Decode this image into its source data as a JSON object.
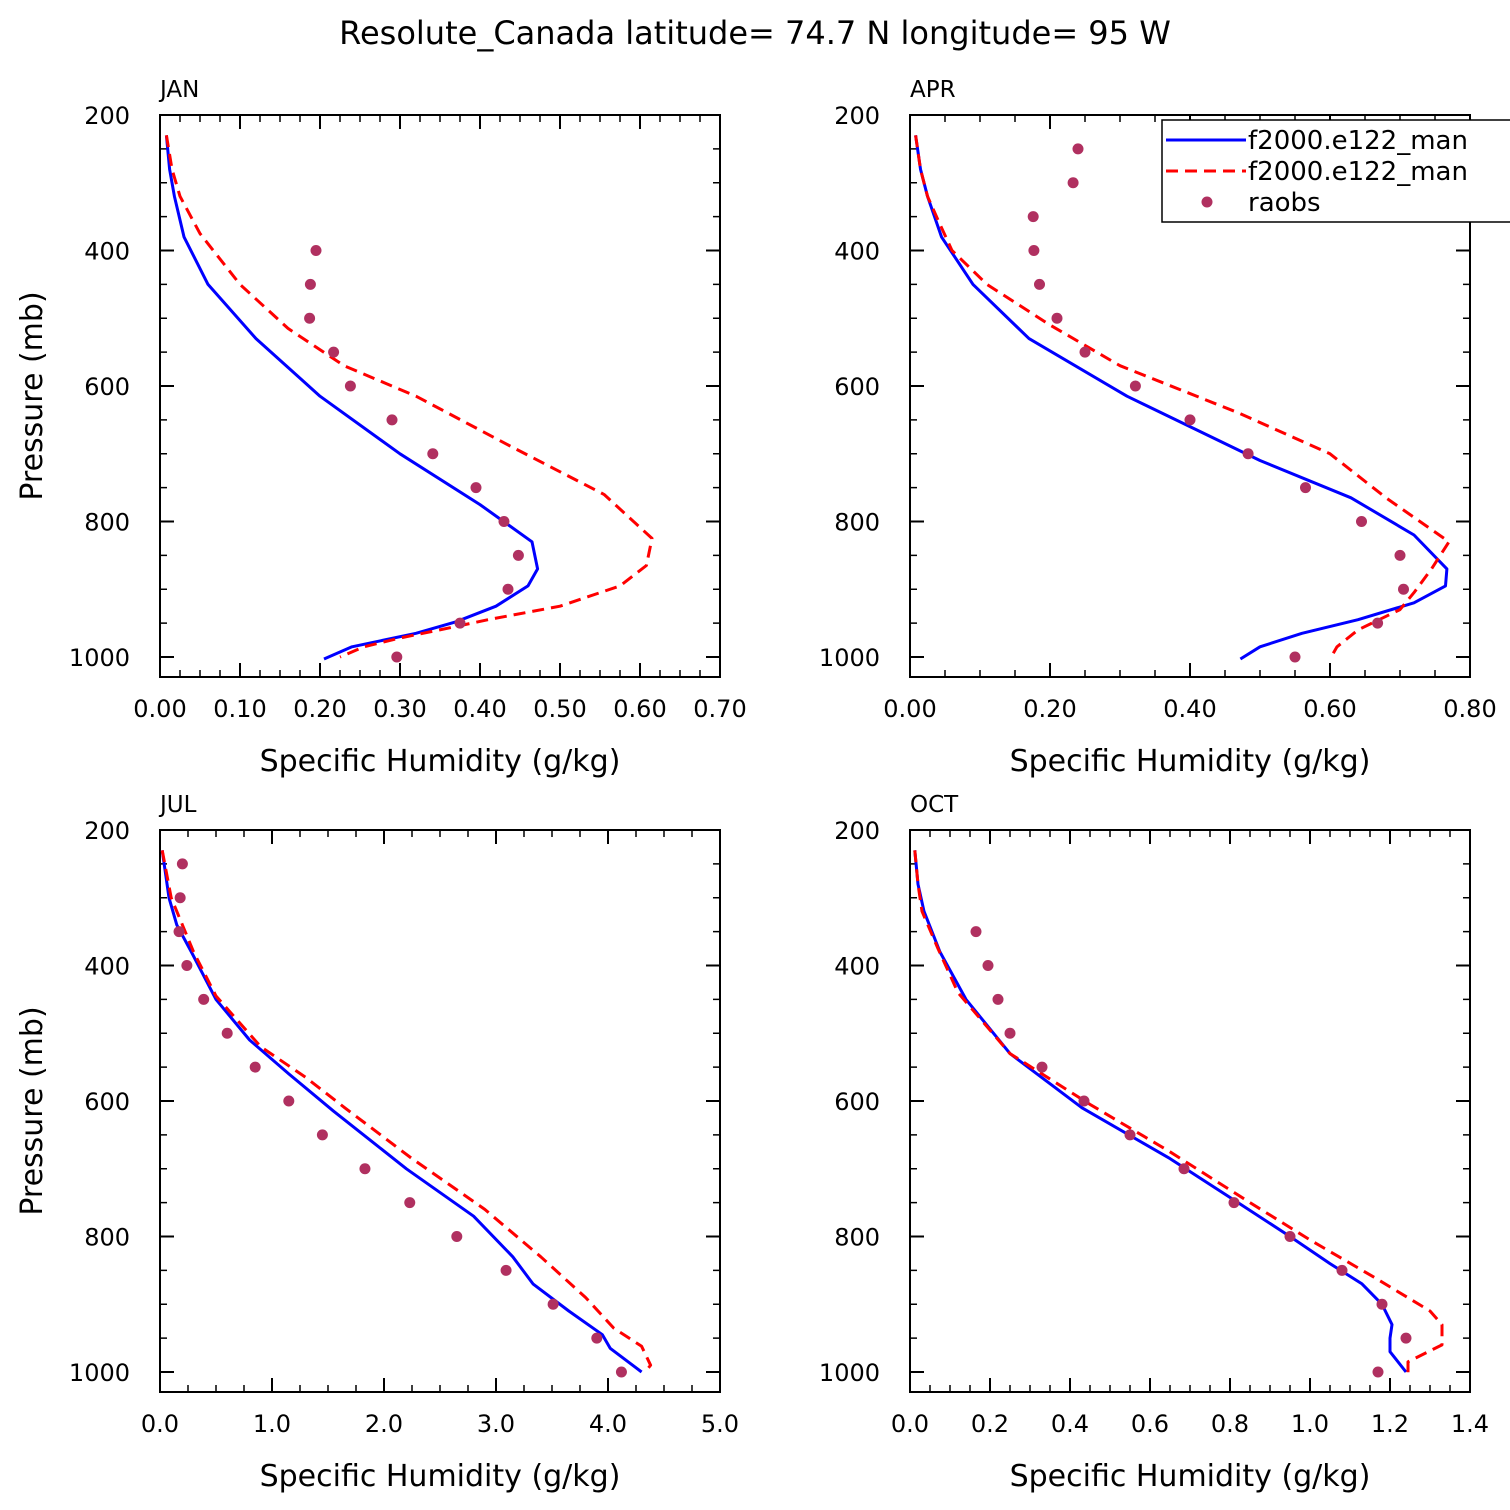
{
  "title": "Resolute_Canada  latitude= 74.7 N longitude= 95 W",
  "legend": {
    "entries": [
      {
        "label": "f2000.e122_man",
        "style": "solid",
        "color": "#0000ff"
      },
      {
        "label": "f2000.e122_man",
        "style": "dashed",
        "color": "#ff0000"
      },
      {
        "label": "raobs",
        "style": "dot",
        "color": "#b03060"
      }
    ]
  },
  "colors": {
    "model_solid": "#0000ff",
    "model_dashed": "#ff0000",
    "raobs": "#b03060"
  },
  "chart_data": [
    {
      "type": "line",
      "panel": "JAN",
      "xlabel": "Specific Humidity (g/kg)",
      "ylabel": "Pressure (mb)",
      "xlim": [
        0,
        0.7
      ],
      "ylim": [
        1000,
        200
      ],
      "xticks": [
        0,
        0.1,
        0.2,
        0.3,
        0.4,
        0.5,
        0.6,
        0.7
      ],
      "xtick_labels": [
        "0.00",
        "0.10",
        "0.20",
        "0.30",
        "0.40",
        "0.50",
        "0.60",
        "0.70"
      ],
      "yticks": [
        200,
        400,
        600,
        800,
        1000
      ],
      "ytick_labels": [
        "200",
        "400",
        "600",
        "800",
        "1000"
      ],
      "series": [
        {
          "style": "solid",
          "color": "#0000ff",
          "points": [
            [
              0.008,
              230
            ],
            [
              0.012,
              280
            ],
            [
              0.018,
              320
            ],
            [
              0.03,
              380
            ],
            [
              0.06,
              450
            ],
            [
              0.12,
              530
            ],
            [
              0.2,
              615
            ],
            [
              0.3,
              700
            ],
            [
              0.4,
              775
            ],
            [
              0.465,
              830
            ],
            [
              0.472,
              870
            ],
            [
              0.46,
              895
            ],
            [
              0.42,
              925
            ],
            [
              0.37,
              948
            ],
            [
              0.32,
              965
            ],
            [
              0.24,
              985
            ],
            [
              0.205,
              1003
            ]
          ]
        },
        {
          "style": "dashed",
          "color": "#ff0000",
          "points": [
            [
              0.008,
              230
            ],
            [
              0.015,
              280
            ],
            [
              0.025,
              320
            ],
            [
              0.05,
              375
            ],
            [
              0.1,
              450
            ],
            [
              0.16,
              515
            ],
            [
              0.23,
              570
            ],
            [
              0.32,
              615
            ],
            [
              0.44,
              690
            ],
            [
              0.555,
              760
            ],
            [
              0.615,
              825
            ],
            [
              0.608,
              865
            ],
            [
              0.575,
              895
            ],
            [
              0.5,
              925
            ],
            [
              0.41,
              945
            ],
            [
              0.37,
              955
            ],
            [
              0.3,
              972
            ],
            [
              0.255,
              985
            ],
            [
              0.225,
              1000
            ]
          ]
        },
        {
          "style": "dots",
          "color": "#b03060",
          "points": [
            [
              0.195,
              400
            ],
            [
              0.188,
              450
            ],
            [
              0.187,
              500
            ],
            [
              0.217,
              550
            ],
            [
              0.238,
              600
            ],
            [
              0.29,
              650
            ],
            [
              0.341,
              700
            ],
            [
              0.395,
              750
            ],
            [
              0.43,
              800
            ],
            [
              0.448,
              850
            ],
            [
              0.435,
              900
            ],
            [
              0.375,
              950
            ],
            [
              0.296,
              1000
            ]
          ]
        }
      ]
    },
    {
      "type": "line",
      "panel": "APR",
      "xlabel": "Specific Humidity (g/kg)",
      "ylabel": "",
      "xlim": [
        0,
        0.8
      ],
      "ylim": [
        1000,
        200
      ],
      "xticks": [
        0,
        0.2,
        0.4,
        0.6,
        0.8
      ],
      "xtick_labels": [
        "0.00",
        "0.20",
        "0.40",
        "0.60",
        "0.80"
      ],
      "yticks": [
        200,
        400,
        600,
        800,
        1000
      ],
      "ytick_labels": [
        "200",
        "400",
        "600",
        "800",
        "1000"
      ],
      "series": [
        {
          "style": "solid",
          "color": "#0000ff",
          "points": [
            [
              0.008,
              230
            ],
            [
              0.015,
              280
            ],
            [
              0.025,
              320
            ],
            [
              0.045,
              380
            ],
            [
              0.09,
              450
            ],
            [
              0.17,
              530
            ],
            [
              0.31,
              615
            ],
            [
              0.5,
              710
            ],
            [
              0.63,
              765
            ],
            [
              0.72,
              820
            ],
            [
              0.767,
              870
            ],
            [
              0.765,
              895
            ],
            [
              0.72,
              920
            ],
            [
              0.64,
              945
            ],
            [
              0.56,
              965
            ],
            [
              0.5,
              985
            ],
            [
              0.472,
              1003
            ]
          ]
        },
        {
          "style": "dashed",
          "color": "#ff0000",
          "points": [
            [
              0.008,
              230
            ],
            [
              0.015,
              280
            ],
            [
              0.025,
              320
            ],
            [
              0.04,
              355
            ],
            [
              0.06,
              400
            ],
            [
              0.11,
              450
            ],
            [
              0.2,
              510
            ],
            [
              0.3,
              570
            ],
            [
              0.47,
              640
            ],
            [
              0.6,
              700
            ],
            [
              0.68,
              765
            ],
            [
              0.77,
              830
            ],
            [
              0.745,
              870
            ],
            [
              0.72,
              905
            ],
            [
              0.7,
              930
            ],
            [
              0.66,
              950
            ],
            [
              0.64,
              960
            ],
            [
              0.61,
              985
            ],
            [
              0.6,
              1003
            ]
          ]
        },
        {
          "style": "dots",
          "color": "#b03060",
          "points": [
            [
              0.24,
              250
            ],
            [
              0.233,
              300
            ],
            [
              0.176,
              350
            ],
            [
              0.177,
              400
            ],
            [
              0.185,
              450
            ],
            [
              0.21,
              500
            ],
            [
              0.25,
              550
            ],
            [
              0.322,
              600
            ],
            [
              0.4,
              650
            ],
            [
              0.483,
              700
            ],
            [
              0.565,
              750
            ],
            [
              0.645,
              800
            ],
            [
              0.7,
              850
            ],
            [
              0.705,
              900
            ],
            [
              0.668,
              950
            ],
            [
              0.55,
              1000
            ]
          ]
        }
      ]
    },
    {
      "type": "line",
      "panel": "JUL",
      "xlabel": "Specific Humidity (g/kg)",
      "ylabel": "Pressure (mb)",
      "xlim": [
        0,
        5
      ],
      "ylim": [
        1000,
        200
      ],
      "xticks": [
        0,
        1,
        2,
        3,
        4,
        5
      ],
      "xtick_labels": [
        "0.0",
        "1.0",
        "2.0",
        "3.0",
        "4.0",
        "5.0"
      ],
      "yticks": [
        200,
        400,
        600,
        800,
        1000
      ],
      "ytick_labels": [
        "200",
        "400",
        "600",
        "800",
        "1000"
      ],
      "series": [
        {
          "style": "solid",
          "color": "#0000ff",
          "points": [
            [
              0.02,
              230
            ],
            [
              0.08,
              300
            ],
            [
              0.15,
              340
            ],
            [
              0.28,
              380
            ],
            [
              0.5,
              450
            ],
            [
              0.8,
              510
            ],
            [
              1.15,
              560
            ],
            [
              1.55,
              615
            ],
            [
              2.2,
              700
            ],
            [
              2.8,
              770
            ],
            [
              3.15,
              830
            ],
            [
              3.33,
              870
            ],
            [
              3.65,
              910
            ],
            [
              3.95,
              945
            ],
            [
              4.02,
              965
            ],
            [
              4.3,
              1000
            ]
          ]
        },
        {
          "style": "dashed",
          "color": "#ff0000",
          "points": [
            [
              0.02,
              230
            ],
            [
              0.1,
              300
            ],
            [
              0.2,
              340
            ],
            [
              0.3,
              380
            ],
            [
              0.5,
              445
            ],
            [
              0.9,
              520
            ],
            [
              1.3,
              565
            ],
            [
              1.65,
              610
            ],
            [
              2.25,
              685
            ],
            [
              2.9,
              760
            ],
            [
              3.4,
              830
            ],
            [
              3.8,
              890
            ],
            [
              4.05,
              935
            ],
            [
              4.3,
              962
            ],
            [
              4.38,
              990
            ],
            [
              4.33,
              1000
            ]
          ]
        },
        {
          "style": "dots",
          "color": "#b03060",
          "points": [
            [
              0.2,
              250
            ],
            [
              0.18,
              300
            ],
            [
              0.17,
              350
            ],
            [
              0.24,
              400
            ],
            [
              0.39,
              450
            ],
            [
              0.6,
              500
            ],
            [
              0.85,
              550
            ],
            [
              1.15,
              600
            ],
            [
              1.45,
              650
            ],
            [
              1.83,
              700
            ],
            [
              2.23,
              750
            ],
            [
              2.65,
              800
            ],
            [
              3.09,
              850
            ],
            [
              3.51,
              900
            ],
            [
              3.9,
              950
            ],
            [
              4.12,
              1000
            ]
          ]
        }
      ]
    },
    {
      "type": "line",
      "panel": "OCT",
      "xlabel": "Specific Humidity (g/kg)",
      "ylabel": "",
      "xlim": [
        0,
        1.4
      ],
      "ylim": [
        1000,
        200
      ],
      "xticks": [
        0,
        0.2,
        0.4,
        0.6,
        0.8,
        1.0,
        1.2,
        1.4
      ],
      "xtick_labels": [
        "0.0",
        "0.2",
        "0.4",
        "0.6",
        "0.8",
        "1.0",
        "1.2",
        "1.4"
      ],
      "yticks": [
        200,
        400,
        600,
        800,
        1000
      ],
      "ytick_labels": [
        "200",
        "400",
        "600",
        "800",
        "1000"
      ],
      "series": [
        {
          "style": "solid",
          "color": "#0000ff",
          "points": [
            [
              0.012,
              230
            ],
            [
              0.02,
              280
            ],
            [
              0.035,
              320
            ],
            [
              0.075,
              380
            ],
            [
              0.14,
              450
            ],
            [
              0.25,
              530
            ],
            [
              0.43,
              610
            ],
            [
              0.65,
              685
            ],
            [
              0.82,
              750
            ],
            [
              0.95,
              800
            ],
            [
              1.05,
              840
            ],
            [
              1.13,
              870
            ],
            [
              1.18,
              900
            ],
            [
              1.205,
              930
            ],
            [
              1.2,
              950
            ],
            [
              1.2,
              970
            ],
            [
              1.24,
              1000
            ]
          ]
        },
        {
          "style": "dashed",
          "color": "#ff0000",
          "points": [
            [
              0.012,
              230
            ],
            [
              0.02,
              280
            ],
            [
              0.03,
              320
            ],
            [
              0.07,
              375
            ],
            [
              0.12,
              440
            ],
            [
              0.25,
              530
            ],
            [
              0.45,
              605
            ],
            [
              0.65,
              675
            ],
            [
              0.85,
              750
            ],
            [
              1.0,
              805
            ],
            [
              1.16,
              860
            ],
            [
              1.3,
              910
            ],
            [
              1.33,
              930
            ],
            [
              1.33,
              960
            ],
            [
              1.245,
              985
            ],
            [
              1.245,
              1003
            ]
          ]
        },
        {
          "style": "dots",
          "color": "#b03060",
          "points": [
            [
              0.165,
              350
            ],
            [
              0.195,
              400
            ],
            [
              0.22,
              450
            ],
            [
              0.25,
              500
            ],
            [
              0.33,
              550
            ],
            [
              0.435,
              600
            ],
            [
              0.55,
              650
            ],
            [
              0.685,
              700
            ],
            [
              0.81,
              750
            ],
            [
              0.95,
              800
            ],
            [
              1.08,
              850
            ],
            [
              1.18,
              900
            ],
            [
              1.24,
              950
            ],
            [
              1.17,
              1000
            ]
          ]
        }
      ]
    }
  ]
}
